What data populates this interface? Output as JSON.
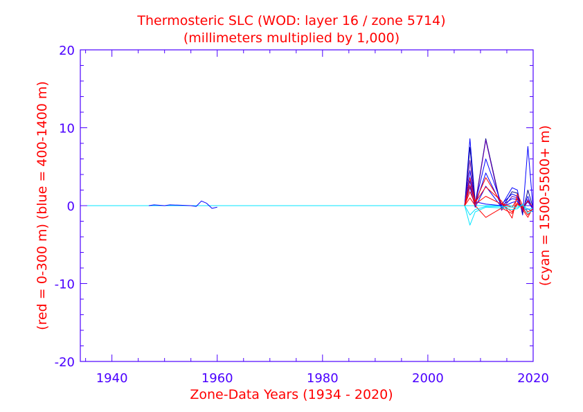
{
  "chart_data": {
    "type": "line",
    "title": "Thermosteric SLC (WOD: layer 16 / zone 5714)",
    "subtitle": "(millimeters multiplied by 1,000)",
    "xlabel": "Zone-Data Years (1934 - 2020)",
    "ylabel_left": "(red = 0-300 m)  (blue = 400-1400 m)",
    "ylabel_right": "(cyan = 1500-5500+ m)",
    "xlim": [
      1934,
      2020
    ],
    "ylim": [
      -20,
      20
    ],
    "x_ticks": [
      1940,
      1960,
      1980,
      2000,
      2020
    ],
    "y_ticks": [
      20,
      10,
      0,
      -10,
      -20
    ],
    "y_tick_labels": [
      "20",
      "10",
      "0",
      "-10",
      "-20"
    ],
    "grid": false,
    "colors": {
      "axis": "#4b00ff",
      "text": "#ff0000",
      "red": "#ff0000",
      "blue": "#0000ff",
      "navy": "#00008b",
      "purple": "#6a00b0",
      "cyan": "#00e5ff"
    },
    "series": [
      {
        "color": "#00e5ff",
        "values": [
          [
            1934,
            0
          ],
          [
            2020,
            0
          ]
        ]
      },
      {
        "color": "#0000ff",
        "values": [
          [
            1947,
            0.0
          ],
          [
            1948,
            0.1
          ],
          [
            1950,
            0.0
          ],
          [
            1951,
            0.1
          ],
          [
            1953,
            0.05
          ],
          [
            1955,
            0.0
          ],
          [
            1956,
            -0.1
          ],
          [
            1957,
            0.6
          ],
          [
            1958,
            0.3
          ],
          [
            1959,
            -0.35
          ],
          [
            1960,
            -0.2
          ]
        ]
      },
      {
        "color": "#0000ff",
        "values": [
          [
            2007,
            0
          ],
          [
            2008,
            8.6
          ],
          [
            2009,
            0.5
          ],
          [
            2011,
            0.2
          ],
          [
            2014,
            0.0
          ],
          [
            2016,
            2.3
          ],
          [
            2017,
            2.0
          ],
          [
            2018,
            -1.2
          ],
          [
            2019,
            7.6
          ],
          [
            2020,
            -0.5
          ]
        ]
      },
      {
        "color": "#00008b",
        "values": [
          [
            2007,
            0
          ],
          [
            2008,
            7.5
          ],
          [
            2009,
            0.2
          ],
          [
            2011,
            8.6
          ],
          [
            2014,
            -0.4
          ],
          [
            2016,
            1.8
          ],
          [
            2017,
            1.6
          ],
          [
            2018,
            -1.0
          ],
          [
            2019,
            2.0
          ],
          [
            2020,
            -0.3
          ]
        ]
      },
      {
        "color": "#6a00b0",
        "values": [
          [
            2007,
            0
          ],
          [
            2008,
            5.8
          ],
          [
            2009,
            0.0
          ],
          [
            2011,
            8.4
          ],
          [
            2014,
            -0.6
          ],
          [
            2016,
            1.2
          ],
          [
            2017,
            1.0
          ],
          [
            2018,
            -0.8
          ],
          [
            2019,
            0.8
          ],
          [
            2020,
            -0.4
          ]
        ]
      },
      {
        "color": "#0000ff",
        "values": [
          [
            2007,
            0
          ],
          [
            2008,
            4.5
          ],
          [
            2009,
            0.3
          ],
          [
            2011,
            6.0
          ],
          [
            2014,
            0.2
          ],
          [
            2016,
            1.5
          ],
          [
            2017,
            1.2
          ],
          [
            2018,
            -0.5
          ],
          [
            2019,
            1.2
          ],
          [
            2020,
            -0.6
          ]
        ]
      },
      {
        "color": "#0000ff",
        "values": [
          [
            2007,
            0
          ],
          [
            2008,
            3.2
          ],
          [
            2009,
            0.1
          ],
          [
            2011,
            4.2
          ],
          [
            2014,
            0.0
          ],
          [
            2016,
            0.9
          ],
          [
            2017,
            0.8
          ],
          [
            2018,
            -0.3
          ],
          [
            2019,
            0.5
          ],
          [
            2020,
            -0.5
          ]
        ]
      },
      {
        "color": "#0000ff",
        "values": [
          [
            2007,
            0
          ],
          [
            2008,
            2.4
          ],
          [
            2009,
            -0.2
          ],
          [
            2011,
            2.5
          ],
          [
            2014,
            -0.2
          ],
          [
            2016,
            0.4
          ],
          [
            2017,
            0.6
          ],
          [
            2018,
            -0.6
          ],
          [
            2019,
            -0.4
          ],
          [
            2020,
            -0.8
          ]
        ]
      },
      {
        "color": "#ff0000",
        "values": [
          [
            2007,
            0
          ],
          [
            2008,
            3.6
          ],
          [
            2009,
            0.5
          ],
          [
            2011,
            3.6
          ],
          [
            2014,
            0.3
          ],
          [
            2016,
            -0.2
          ],
          [
            2017,
            0.9
          ],
          [
            2018,
            -0.2
          ],
          [
            2019,
            0.6
          ],
          [
            2020,
            -0.2
          ]
        ]
      },
      {
        "color": "#ff0000",
        "values": [
          [
            2007,
            0
          ],
          [
            2008,
            2.6
          ],
          [
            2009,
            0.4
          ],
          [
            2011,
            2.4
          ],
          [
            2014,
            0.6
          ],
          [
            2016,
            -1.6
          ],
          [
            2017,
            1.5
          ],
          [
            2018,
            0.0
          ],
          [
            2019,
            -0.8
          ],
          [
            2020,
            -0.4
          ]
        ]
      },
      {
        "color": "#ff0000",
        "values": [
          [
            2007,
            0
          ],
          [
            2008,
            1.8
          ],
          [
            2009,
            0.2
          ],
          [
            2011,
            1.2
          ],
          [
            2014,
            0.2
          ],
          [
            2016,
            -0.8
          ],
          [
            2017,
            0.4
          ],
          [
            2018,
            -0.5
          ],
          [
            2019,
            -1.5
          ],
          [
            2020,
            -0.2
          ]
        ]
      },
      {
        "color": "#ff0000",
        "values": [
          [
            2007,
            0
          ],
          [
            2008,
            1.0
          ],
          [
            2009,
            0.0
          ],
          [
            2011,
            -1.5
          ],
          [
            2014,
            -0.3
          ],
          [
            2016,
            -1.0
          ],
          [
            2017,
            0.2
          ],
          [
            2018,
            -0.3
          ],
          [
            2019,
            -1.2
          ],
          [
            2020,
            -0.3
          ]
        ]
      },
      {
        "color": "#00e5ff",
        "values": [
          [
            2007,
            0
          ],
          [
            2008,
            -2.5
          ],
          [
            2009,
            -0.8
          ],
          [
            2011,
            -0.2
          ],
          [
            2014,
            -0.3
          ],
          [
            2016,
            -0.5
          ],
          [
            2017,
            -0.4
          ],
          [
            2018,
            0.2
          ],
          [
            2019,
            -1.0
          ],
          [
            2020,
            -0.6
          ]
        ]
      },
      {
        "color": "#00e5ff",
        "values": [
          [
            2007,
            0
          ],
          [
            2008,
            -1.2
          ],
          [
            2009,
            -0.5
          ],
          [
            2011,
            -0.1
          ],
          [
            2014,
            -0.1
          ],
          [
            2016,
            -0.2
          ],
          [
            2017,
            -0.2
          ],
          [
            2018,
            0.1
          ],
          [
            2019,
            -0.5
          ],
          [
            2020,
            -0.3
          ]
        ]
      }
    ]
  }
}
